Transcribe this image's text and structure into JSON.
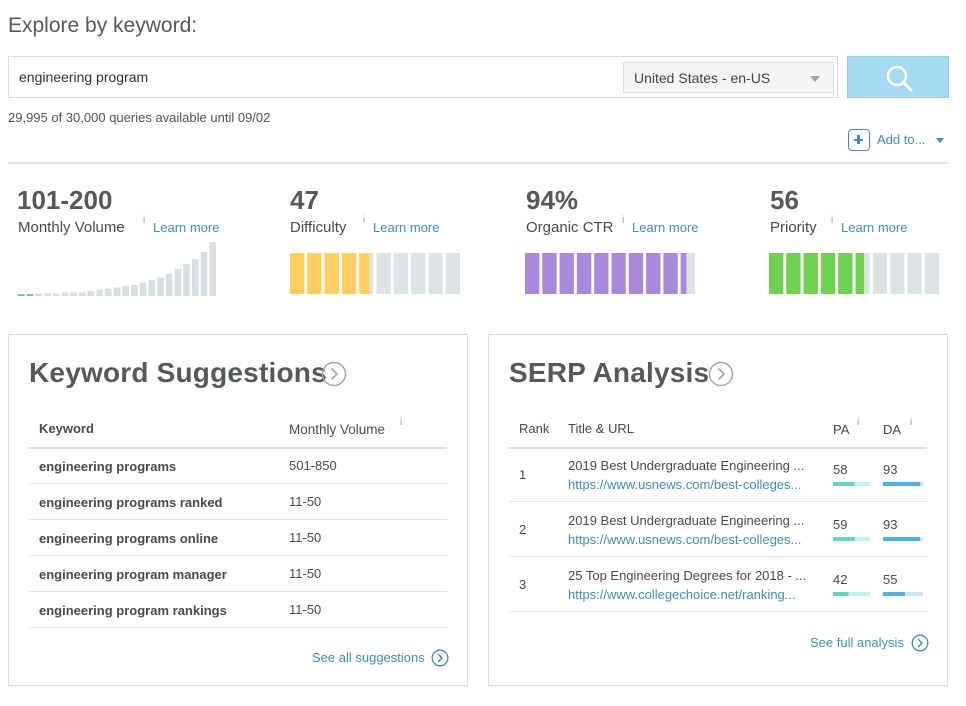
{
  "header": {
    "title": "Explore by keyword:"
  },
  "search": {
    "value": "engineering program",
    "placeholder": "",
    "locale": "United States - en-US",
    "button_icon": "search-icon"
  },
  "quota": "29,995 of 30,000 queries available until 09/02",
  "add_to": {
    "label": "Add to...",
    "icon": "plus-square-icon"
  },
  "metrics": {
    "volume": {
      "value": "101-200",
      "label": "Monthly Volume",
      "info": "i",
      "learn_more": "Learn more",
      "history": [
        1,
        1,
        2,
        2,
        2,
        3,
        3,
        3,
        4,
        5,
        6,
        7,
        8,
        9,
        11,
        13,
        15,
        18,
        22,
        26,
        30,
        36,
        44
      ]
    },
    "difficulty": {
      "value": "47",
      "label": "Difficulty",
      "info": "i",
      "learn_more": "Learn more",
      "segments": 10,
      "filled": 4.7,
      "color": "#ffce5c"
    },
    "ctr": {
      "value": "94%",
      "label": "Organic CTR",
      "info": "i",
      "learn_more": "Learn more",
      "segments": 10,
      "filled": 9.4,
      "color": "#a889dd"
    },
    "priority": {
      "value": "56",
      "label": "Priority",
      "info": "i",
      "learn_more": "Learn more",
      "segments": 10,
      "filled": 5.6,
      "color": "#6fd14f"
    }
  },
  "suggestions": {
    "title": "Keyword Suggestions",
    "col_keyword": "Keyword",
    "col_volume": "Monthly Volume",
    "col_info": "i",
    "rows": [
      {
        "keyword": "engineering programs",
        "volume": "501-850"
      },
      {
        "keyword": "engineering programs ranked",
        "volume": "11-50"
      },
      {
        "keyword": "engineering programs online",
        "volume": "11-50"
      },
      {
        "keyword": "engineering program manager",
        "volume": "11-50"
      },
      {
        "keyword": "engineering program rankings",
        "volume": "11-50"
      }
    ],
    "footer": "See all suggestions"
  },
  "serp": {
    "title": "SERP Analysis",
    "col_rank": "Rank",
    "col_title": "Title & URL",
    "col_pa": "PA",
    "col_da": "DA",
    "col_info": "i",
    "rows": [
      {
        "rank": "1",
        "title": "2019 Best Undergraduate Engineering ...",
        "url": "https://www.usnews.com/best-colleges...",
        "pa": "58",
        "da": "93"
      },
      {
        "rank": "2",
        "title": "2019 Best Undergraduate Engineering ...",
        "url": "https://www.usnews.com/best-colleges...",
        "pa": "59",
        "da": "93"
      },
      {
        "rank": "3",
        "title": "25 Top Engineering Degrees for 2018 - ...",
        "url": "https://www.collegechoice.net/ranking...",
        "pa": "42",
        "da": "55"
      }
    ],
    "footer": "See full analysis"
  },
  "colors": {
    "accent": "#3d8fb4",
    "pa_fill": "#5ed4c4",
    "pa_track": "#c5f1ec",
    "da_fill": "#4cb3e0",
    "da_track": "#c6e8f7",
    "bar_empty": "#dde3e4"
  }
}
